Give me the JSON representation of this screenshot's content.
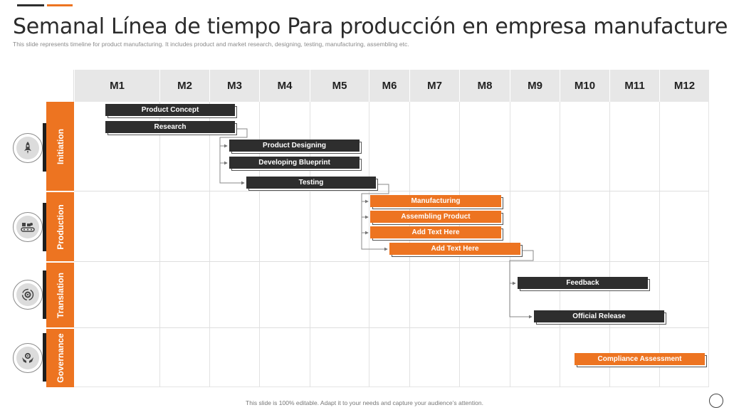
{
  "header": {
    "title": "Semanal Línea de tiempo Para producción en empresa manufacturera",
    "subtitle": "This slide represents timeline for product manufacturing. It includes product and market research, designing, testing, manufacturing, assembling etc.",
    "accent_colors": [
      "#2e2e2e",
      "#ed7421"
    ]
  },
  "months": [
    "M1",
    "M2",
    "M3",
    "M4",
    "M5",
    "M6",
    "M7",
    "M8",
    "M9",
    "M10",
    "M11",
    "M12"
  ],
  "phases": [
    {
      "label": "Initiation",
      "icon": "rocket-icon"
    },
    {
      "label": "Production",
      "icon": "conveyor-icon"
    },
    {
      "label": "Translation",
      "icon": "gear-cycle-icon"
    },
    {
      "label": "Governance",
      "icon": "hands-gear-icon"
    }
  ],
  "tasks": [
    {
      "label": "Product Concept",
      "style": "dark"
    },
    {
      "label": "Research",
      "style": "dark"
    },
    {
      "label": "Product Designing",
      "style": "dark"
    },
    {
      "label": "Developing Blueprint",
      "style": "dark"
    },
    {
      "label": "Testing",
      "style": "dark"
    },
    {
      "label": "Manufacturing",
      "style": "orange"
    },
    {
      "label": "Assembling Product",
      "style": "orange"
    },
    {
      "label": "Add Text Here",
      "style": "orange"
    },
    {
      "label": "Add Text Here",
      "style": "orange"
    },
    {
      "label": "Feedback",
      "style": "dark"
    },
    {
      "label": "Official Release",
      "style": "dark"
    },
    {
      "label": "Compliance Assessment",
      "style": "orange"
    }
  ],
  "footer": {
    "note": "This slide is 100% editable. Adapt it to your needs and capture your audience’s attention."
  },
  "colors": {
    "orange": "#ed7421",
    "dark": "#2e2e2e",
    "header_gray": "#e7e7e7"
  }
}
